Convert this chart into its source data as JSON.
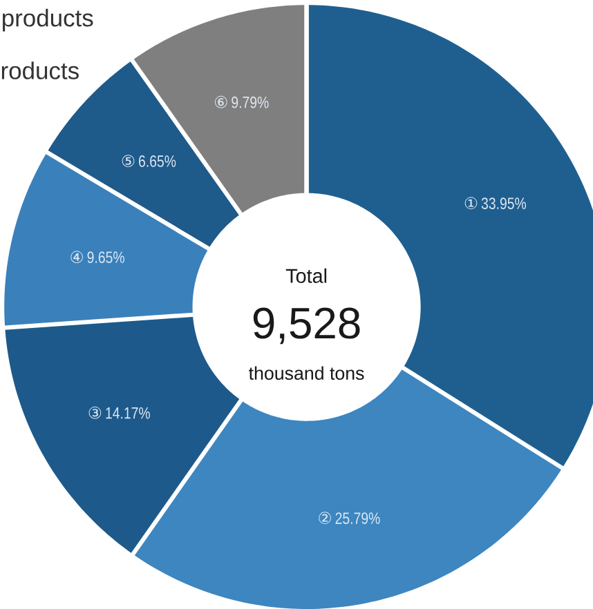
{
  "chart_data": {
    "type": "donut",
    "categories": [
      "①",
      "②",
      "③",
      "④",
      "⑤",
      "⑥"
    ],
    "values": [
      33.95,
      25.79,
      14.17,
      9.65,
      6.65,
      9.79
    ],
    "value_labels": [
      "33.95%",
      "25.79%",
      "14.17%",
      "9.65%",
      "6.65%",
      "9.79%"
    ],
    "colors": [
      "#1f5f90",
      "#3d86c0",
      "#1d5a8b",
      "#3a80bb",
      "#1e5a8a",
      "#7f7f7f"
    ],
    "annotations": [
      "products",
      "roducts",
      "Total",
      "9,528",
      "thousand tons"
    ]
  }
}
